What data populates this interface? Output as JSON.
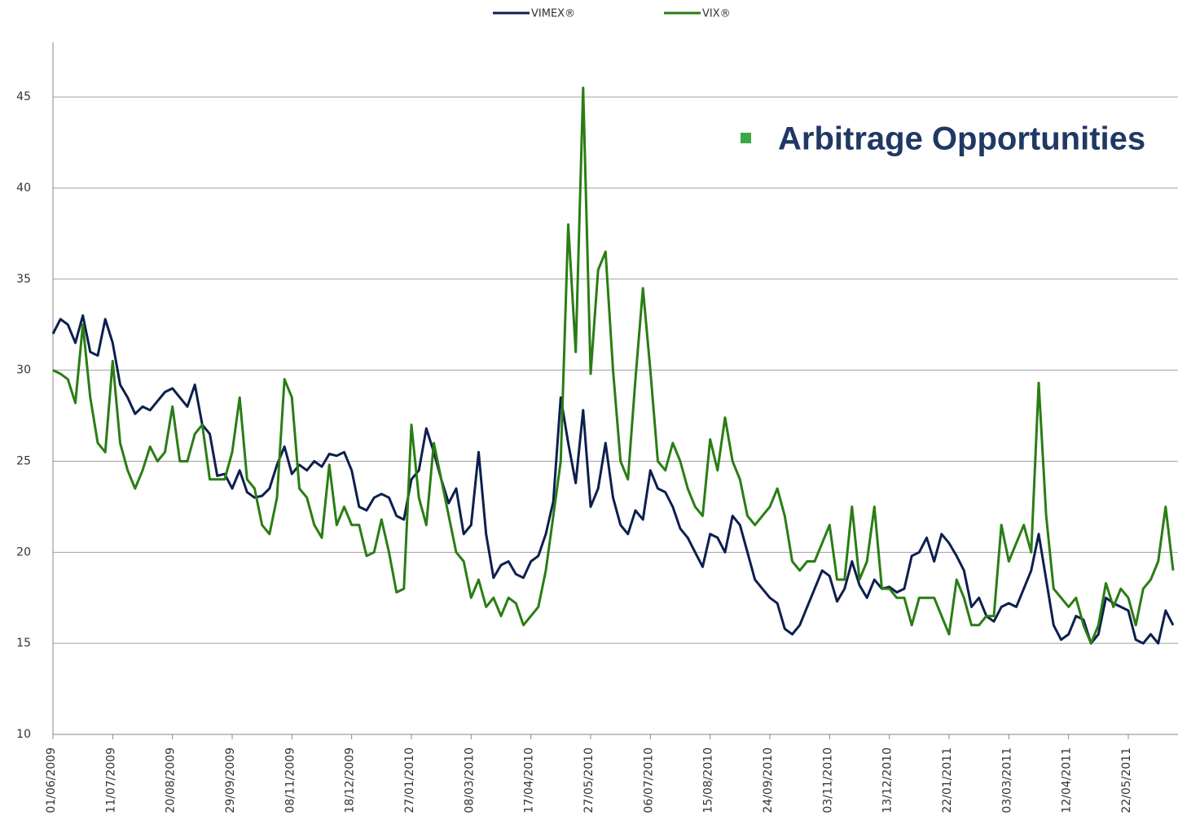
{
  "chart_data": {
    "type": "line",
    "annotation": "Arbitrage Opportunities",
    "annotation_color": "#3aa845",
    "x": [
      "01/06/2009",
      "06/06/2009",
      "11/06/2009",
      "16/06/2009",
      "21/06/2009",
      "26/06/2009",
      "01/07/2009",
      "06/07/2009",
      "11/07/2009",
      "16/07/2009",
      "21/07/2009",
      "26/07/2009",
      "31/07/2009",
      "05/08/2009",
      "10/08/2009",
      "15/08/2009",
      "20/08/2009",
      "25/08/2009",
      "30/08/2009",
      "04/09/2009",
      "09/09/2009",
      "14/09/2009",
      "19/09/2009",
      "24/09/2009",
      "29/09/2009",
      "04/10/2009",
      "09/10/2009",
      "14/10/2009",
      "19/10/2009",
      "24/10/2009",
      "29/10/2009",
      "03/11/2009",
      "08/11/2009",
      "13/11/2009",
      "18/11/2009",
      "23/11/2009",
      "28/11/2009",
      "03/12/2009",
      "08/12/2009",
      "13/12/2009",
      "18/12/2009",
      "23/12/2009",
      "28/12/2009",
      "02/01/2010",
      "07/01/2010",
      "12/01/2010",
      "17/01/2010",
      "22/01/2010",
      "27/01/2010",
      "01/02/2010",
      "06/02/2010",
      "11/02/2010",
      "16/02/2010",
      "21/02/2010",
      "26/02/2010",
      "03/03/2010",
      "08/03/2010",
      "13/03/2010",
      "18/03/2010",
      "23/03/2010",
      "28/03/2010",
      "02/04/2010",
      "07/04/2010",
      "12/04/2010",
      "17/04/2010",
      "22/04/2010",
      "27/04/2010",
      "02/05/2010",
      "07/05/2010",
      "12/05/2010",
      "17/05/2010",
      "22/05/2010",
      "27/05/2010",
      "01/06/2010",
      "06/06/2010",
      "11/06/2010",
      "16/06/2010",
      "21/06/2010",
      "26/06/2010",
      "01/07/2010",
      "06/07/2010",
      "11/07/2010",
      "16/07/2010",
      "21/07/2010",
      "26/07/2010",
      "31/07/2010",
      "05/08/2010",
      "10/08/2010",
      "15/08/2010",
      "20/08/2010",
      "25/08/2010",
      "30/08/2010",
      "04/09/2010",
      "09/09/2010",
      "14/09/2010",
      "19/09/2010",
      "24/09/2010",
      "29/09/2010",
      "04/10/2010",
      "09/10/2010",
      "14/10/2010",
      "19/10/2010",
      "24/10/2010",
      "29/10/2010",
      "03/11/2010",
      "08/11/2010",
      "13/11/2010",
      "18/11/2010",
      "23/11/2010",
      "28/11/2010",
      "03/12/2010",
      "08/12/2010",
      "13/12/2010",
      "18/12/2010",
      "23/12/2010",
      "28/12/2010",
      "02/01/2011",
      "07/01/2011",
      "12/01/2011",
      "17/01/2011",
      "22/01/2011",
      "27/01/2011",
      "01/02/2011",
      "06/02/2011",
      "11/02/2011",
      "16/02/2011",
      "21/02/2011",
      "26/02/2011",
      "03/03/2011",
      "08/03/2011",
      "13/03/2011",
      "18/03/2011",
      "23/03/2011",
      "28/03/2011",
      "02/04/2011",
      "07/04/2011",
      "12/04/2011",
      "17/04/2011",
      "22/04/2011",
      "27/04/2011",
      "02/05/2011",
      "07/05/2011",
      "12/05/2011",
      "17/05/2011",
      "22/05/2011",
      "27/05/2011",
      "01/06/2011",
      "06/06/2011",
      "11/06/2011",
      "16/06/2011",
      "21/06/2011"
    ],
    "series": [
      {
        "name": "VIMEX®",
        "color": "#0d1f4f",
        "values": [
          32,
          32.8,
          32.5,
          31.5,
          33,
          31,
          30.8,
          32.8,
          31.5,
          29.2,
          28.5,
          27.6,
          28,
          27.8,
          28.3,
          28.8,
          29,
          28.5,
          28,
          29.2,
          27,
          26.5,
          24.2,
          24.3,
          23.5,
          24.5,
          23.3,
          23,
          23.1,
          23.5,
          24.8,
          25.8,
          24.3,
          24.8,
          24.5,
          25,
          24.7,
          25.4,
          25.3,
          25.5,
          24.5,
          22.5,
          22.3,
          23,
          23.2,
          23,
          22,
          21.8,
          24,
          24.5,
          26.8,
          25.5,
          24,
          22.7,
          23.5,
          21,
          21.5,
          25.5,
          21,
          18.6,
          19.3,
          19.5,
          18.8,
          18.6,
          19.5,
          19.8,
          21,
          22.8,
          28.5,
          26,
          23.8,
          27.8,
          22.5,
          23.5,
          26,
          23,
          21.5,
          21,
          22.3,
          21.8,
          24.5,
          23.5,
          23.3,
          22.5,
          21.3,
          20.8,
          20,
          19.2,
          21,
          20.8,
          20,
          22,
          21.5,
          20,
          18.5,
          18,
          17.5,
          17.2,
          15.8,
          15.5,
          16,
          17,
          18,
          19,
          18.7,
          17.3,
          18,
          19.5,
          18.2,
          17.5,
          18.5,
          18,
          18.1,
          17.8,
          18,
          19.8,
          20,
          20.8,
          19.5,
          21,
          20.5,
          19.8,
          19,
          17,
          17.5,
          16.5,
          16.2,
          17,
          17.2,
          17,
          18,
          19,
          21,
          18.5,
          16,
          15.2,
          15.5,
          16.5,
          16.3,
          15,
          15.5,
          17.5,
          17.2,
          17,
          16.8,
          15.2,
          15,
          15.5,
          15,
          16.8,
          16
        ]
      },
      {
        "name": "VIX®",
        "color": "#2a7d14",
        "values": [
          30,
          29.8,
          29.5,
          28.2,
          32.5,
          28.5,
          26,
          25.5,
          30.5,
          26,
          24.5,
          23.5,
          24.5,
          25.8,
          25,
          25.5,
          28,
          25,
          25,
          26.5,
          27,
          24,
          24,
          24,
          25.5,
          28.5,
          24,
          23.5,
          21.5,
          21,
          23,
          29.5,
          28.5,
          23.5,
          23,
          21.5,
          20.8,
          24.8,
          21.5,
          22.5,
          21.5,
          21.5,
          19.8,
          20,
          21.8,
          20,
          17.8,
          18,
          27,
          23,
          21.5,
          26,
          24,
          22,
          20,
          19.5,
          17.5,
          18.5,
          17,
          17.5,
          16.5,
          17.5,
          17.2,
          16,
          16.5,
          17,
          19,
          22,
          25,
          38,
          31,
          45.5,
          29.8,
          35.5,
          36.5,
          30,
          25,
          24,
          29.5,
          34.5,
          30,
          25,
          24.5,
          26,
          25,
          23.5,
          22.5,
          22,
          26.2,
          24.5,
          27.4,
          25,
          24,
          22,
          21.5,
          22,
          22.5,
          23.5,
          22,
          19.5,
          19,
          19.5,
          19.5,
          20.5,
          21.5,
          18.5,
          18.5,
          22.5,
          18.5,
          19.5,
          22.5,
          18,
          18,
          17.5,
          17.5,
          16,
          17.5,
          17.5,
          17.5,
          16.5,
          15.5,
          18.5,
          17.5,
          16,
          16,
          16.5,
          16.5,
          21.5,
          19.5,
          20.5,
          21.5,
          20,
          29.3,
          22,
          18,
          17.5,
          17,
          17.5,
          16,
          15,
          16,
          18.3,
          17,
          18,
          17.5,
          16,
          18,
          18.5,
          19.5,
          22.5,
          19
        ]
      }
    ],
    "xlim": [
      "01/06/2009",
      "21/06/2011"
    ],
    "xticks": [
      "01/06/2009",
      "11/07/2009",
      "20/08/2009",
      "29/09/2009",
      "08/11/2009",
      "18/12/2009",
      "27/01/2010",
      "08/03/2010",
      "17/04/2010",
      "27/05/2010",
      "06/07/2010",
      "15/08/2010",
      "24/09/2010",
      "03/11/2010",
      "13/12/2010",
      "22/01/2011",
      "03/03/2011",
      "12/04/2011",
      "22/05/2011"
    ],
    "ylim": [
      10,
      48
    ],
    "yticks": [
      10,
      15,
      20,
      25,
      30,
      35,
      40,
      45
    ],
    "grid": true,
    "legend": "top"
  }
}
